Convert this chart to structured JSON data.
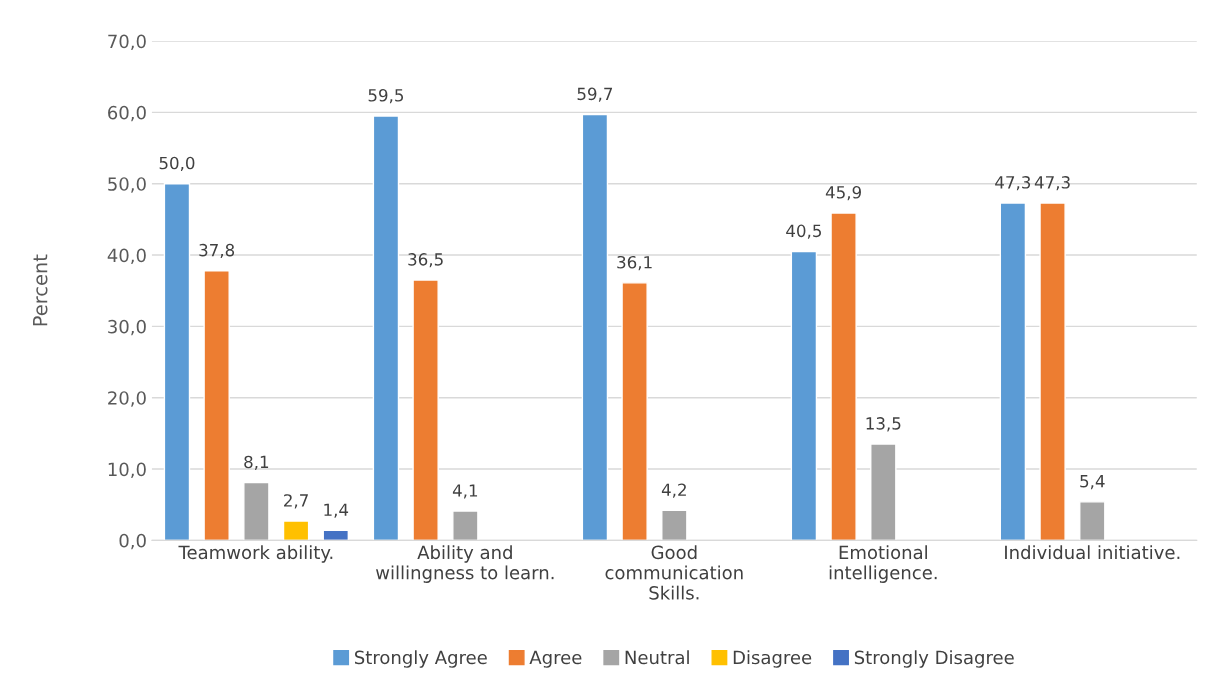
{
  "chart_data": {
    "type": "bar",
    "ylabel": "Percent",
    "categories": [
      "Teamwork ability.",
      "Ability and\nwillingness to learn.",
      "Good\ncommunication\nSkills.",
      "Emotional\nintelligence.",
      "Individual initiative."
    ],
    "series": [
      {
        "name": "Strongly Agree",
        "color": "#5b9bd5",
        "values": [
          50.0,
          59.5,
          59.7,
          40.5,
          47.3
        ],
        "value_labels": [
          "50,0",
          "59,5",
          "59,7",
          "40,5",
          "47,3"
        ]
      },
      {
        "name": "Agree",
        "color": "#ed7d31",
        "values": [
          37.8,
          36.5,
          36.1,
          45.9,
          47.3
        ],
        "value_labels": [
          "37,8",
          "36,5",
          "36,1",
          "45,9",
          "47,3"
        ]
      },
      {
        "name": "Neutral",
        "color": "#a5a5a5",
        "values": [
          8.1,
          4.1,
          4.2,
          13.5,
          5.4
        ],
        "value_labels": [
          "8,1",
          "4,1",
          "4,2",
          "13,5",
          "5,4"
        ]
      },
      {
        "name": "Disagree",
        "color": "#ffc000",
        "values": [
          2.7,
          null,
          null,
          null,
          null
        ],
        "value_labels": [
          "2,7",
          null,
          null,
          null,
          null
        ]
      },
      {
        "name": "Strongly Disagree",
        "color": "#4472c4",
        "values": [
          1.4,
          null,
          null,
          null,
          null
        ],
        "value_labels": [
          "1,4",
          null,
          null,
          null,
          null
        ]
      }
    ],
    "ylim": [
      0,
      70
    ],
    "yticks": [
      {
        "value": 0,
        "label": "0,0"
      },
      {
        "value": 10,
        "label": "10,0"
      },
      {
        "value": 20,
        "label": "20,0"
      },
      {
        "value": 30,
        "label": "30,0"
      },
      {
        "value": 40,
        "label": "40,0"
      },
      {
        "value": 50,
        "label": "50,0"
      },
      {
        "value": 60,
        "label": "60,0"
      },
      {
        "value": 70,
        "label": "70,0"
      }
    ],
    "grid": "y",
    "legend": "bottom"
  }
}
